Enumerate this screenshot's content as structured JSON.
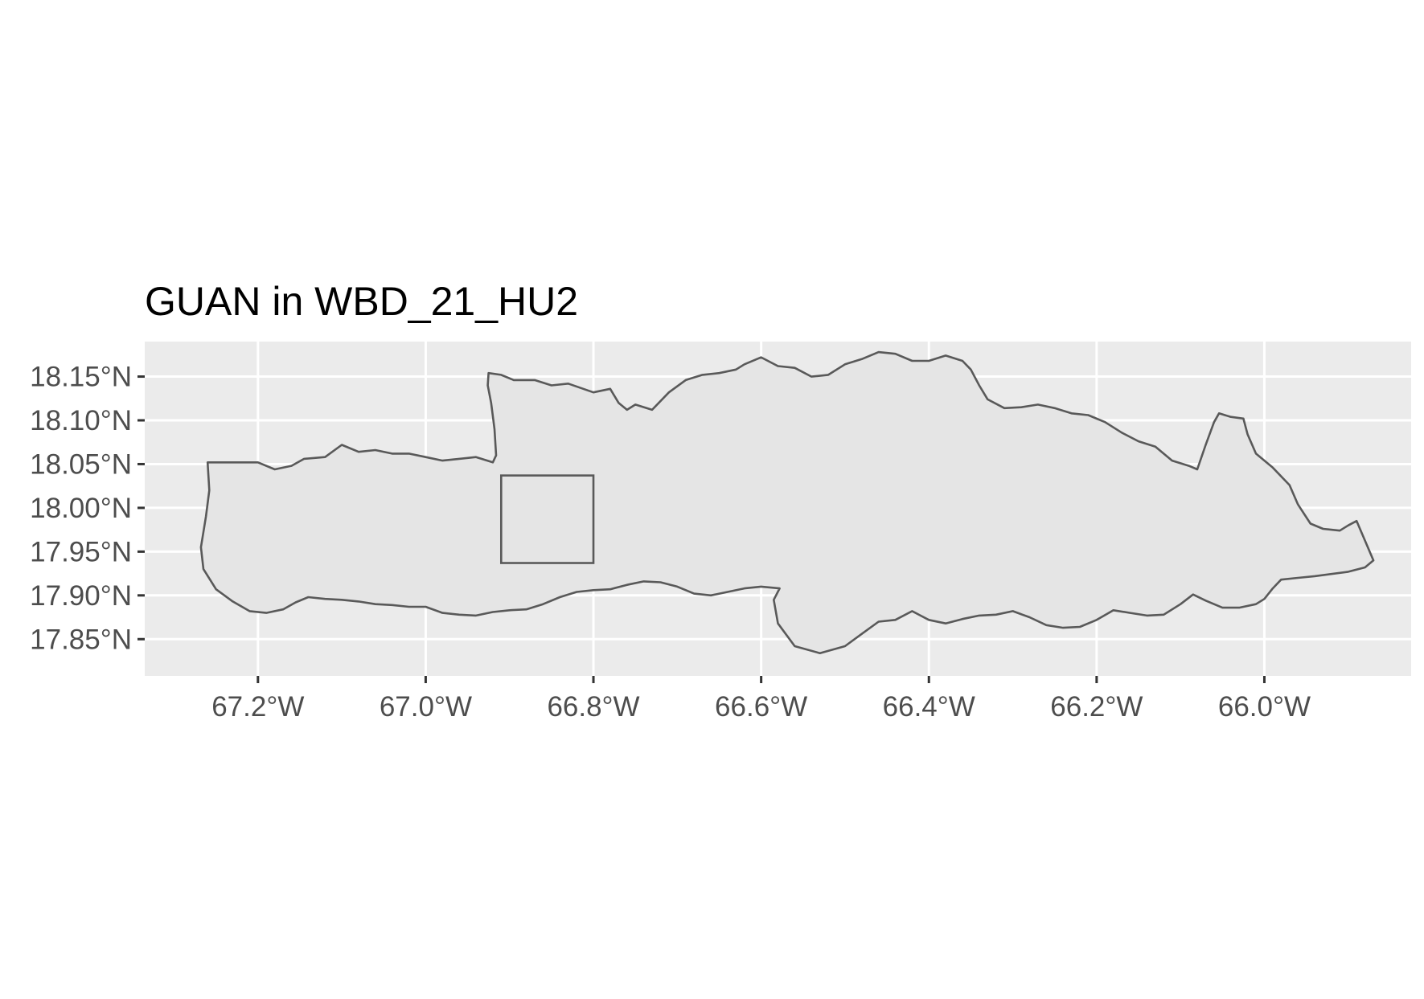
{
  "map": {
    "title": "GUAN in WBD_21_HU2",
    "lon_range": [
      -67.335,
      -65.825
    ],
    "lat_range": [
      17.808,
      18.19
    ],
    "x_ticks": [
      {
        "value": -67.2,
        "label": "67.2°W"
      },
      {
        "value": -67.0,
        "label": "67.0°W"
      },
      {
        "value": -66.8,
        "label": "66.8°W"
      },
      {
        "value": -66.6,
        "label": "66.6°W"
      },
      {
        "value": -66.4,
        "label": "66.4°W"
      },
      {
        "value": -66.2,
        "label": "66.2°W"
      },
      {
        "value": -66.0,
        "label": "66.0°W"
      }
    ],
    "y_ticks": [
      {
        "value": 18.15,
        "label": "18.15°N"
      },
      {
        "value": 18.1,
        "label": "18.10°N"
      },
      {
        "value": 18.05,
        "label": "18.05°N"
      },
      {
        "value": 18.0,
        "label": "18.00°N"
      },
      {
        "value": 17.95,
        "label": "17.95°N"
      },
      {
        "value": 17.9,
        "label": "17.90°N"
      },
      {
        "value": 17.85,
        "label": "17.85°N"
      }
    ],
    "colors": {
      "panel_background": "#ebebeb",
      "grid": "#ffffff",
      "region_fill": "#e5e5e5",
      "region_outline": "#595959"
    },
    "site_box": {
      "lon_min": -66.91,
      "lon_max": -66.8,
      "lat_min": 17.937,
      "lat_max": 18.037
    },
    "region_outline": [
      [
        -67.26,
        18.052
      ],
      [
        -67.2,
        18.052
      ],
      [
        -67.18,
        18.044
      ],
      [
        -67.16,
        18.048
      ],
      [
        -67.145,
        18.056
      ],
      [
        -67.12,
        18.058
      ],
      [
        -67.1,
        18.072
      ],
      [
        -67.08,
        18.064
      ],
      [
        -67.06,
        18.066
      ],
      [
        -67.04,
        18.062
      ],
      [
        -67.02,
        18.062
      ],
      [
        -67.0,
        18.058
      ],
      [
        -66.98,
        18.054
      ],
      [
        -66.96,
        18.056
      ],
      [
        -66.94,
        18.058
      ],
      [
        -66.92,
        18.052
      ],
      [
        -66.916,
        18.06
      ],
      [
        -66.918,
        18.09
      ],
      [
        -66.922,
        18.12
      ],
      [
        -66.926,
        18.14
      ],
      [
        -66.925,
        18.154
      ],
      [
        -66.91,
        18.152
      ],
      [
        -66.895,
        18.146
      ],
      [
        -66.87,
        18.146
      ],
      [
        -66.85,
        18.14
      ],
      [
        -66.83,
        18.142
      ],
      [
        -66.8,
        18.132
      ],
      [
        -66.78,
        18.136
      ],
      [
        -66.77,
        18.12
      ],
      [
        -66.76,
        18.112
      ],
      [
        -66.75,
        18.118
      ],
      [
        -66.73,
        18.112
      ],
      [
        -66.71,
        18.132
      ],
      [
        -66.69,
        18.146
      ],
      [
        -66.67,
        18.152
      ],
      [
        -66.65,
        18.154
      ],
      [
        -66.63,
        18.158
      ],
      [
        -66.62,
        18.164
      ],
      [
        -66.6,
        18.172
      ],
      [
        -66.58,
        18.162
      ],
      [
        -66.56,
        18.16
      ],
      [
        -66.54,
        18.15
      ],
      [
        -66.52,
        18.152
      ],
      [
        -66.5,
        18.164
      ],
      [
        -66.48,
        18.17
      ],
      [
        -66.46,
        18.178
      ],
      [
        -66.44,
        18.176
      ],
      [
        -66.42,
        18.168
      ],
      [
        -66.4,
        18.168
      ],
      [
        -66.38,
        18.174
      ],
      [
        -66.36,
        18.168
      ],
      [
        -66.35,
        18.158
      ],
      [
        -66.34,
        18.14
      ],
      [
        -66.33,
        18.124
      ],
      [
        -66.31,
        18.114
      ],
      [
        -66.29,
        18.115
      ],
      [
        -66.27,
        18.118
      ],
      [
        -66.25,
        18.114
      ],
      [
        -66.23,
        18.108
      ],
      [
        -66.21,
        18.106
      ],
      [
        -66.19,
        18.098
      ],
      [
        -66.17,
        18.086
      ],
      [
        -66.15,
        18.076
      ],
      [
        -66.13,
        18.07
      ],
      [
        -66.11,
        18.054
      ],
      [
        -66.09,
        18.048
      ],
      [
        -66.08,
        18.044
      ],
      [
        -66.07,
        18.072
      ],
      [
        -66.06,
        18.098
      ],
      [
        -66.054,
        18.108
      ],
      [
        -66.04,
        18.104
      ],
      [
        -66.025,
        18.102
      ],
      [
        -66.02,
        18.084
      ],
      [
        -66.01,
        18.062
      ],
      [
        -65.99,
        18.046
      ],
      [
        -65.97,
        18.026
      ],
      [
        -65.96,
        18.004
      ],
      [
        -65.945,
        17.982
      ],
      [
        -65.93,
        17.976
      ],
      [
        -65.91,
        17.974
      ],
      [
        -65.9,
        17.98
      ],
      [
        -65.89,
        17.985
      ],
      [
        -65.87,
        17.94
      ],
      [
        -65.88,
        17.932
      ],
      [
        -65.9,
        17.927
      ],
      [
        -65.94,
        17.922
      ],
      [
        -65.96,
        17.92
      ],
      [
        -65.98,
        17.918
      ],
      [
        -65.99,
        17.908
      ],
      [
        -66.0,
        17.896
      ],
      [
        -66.01,
        17.89
      ],
      [
        -66.03,
        17.886
      ],
      [
        -66.05,
        17.886
      ],
      [
        -66.07,
        17.894
      ],
      [
        -66.085,
        17.901
      ],
      [
        -66.1,
        17.89
      ],
      [
        -66.12,
        17.878
      ],
      [
        -66.14,
        17.877
      ],
      [
        -66.16,
        17.88
      ],
      [
        -66.18,
        17.883
      ],
      [
        -66.2,
        17.872
      ],
      [
        -66.22,
        17.864
      ],
      [
        -66.24,
        17.863
      ],
      [
        -66.26,
        17.866
      ],
      [
        -66.28,
        17.875
      ],
      [
        -66.3,
        17.882
      ],
      [
        -66.32,
        17.878
      ],
      [
        -66.34,
        17.877
      ],
      [
        -66.36,
        17.873
      ],
      [
        -66.38,
        17.868
      ],
      [
        -66.4,
        17.872
      ],
      [
        -66.42,
        17.882
      ],
      [
        -66.44,
        17.872
      ],
      [
        -66.46,
        17.87
      ],
      [
        -66.48,
        17.856
      ],
      [
        -66.5,
        17.842
      ],
      [
        -66.53,
        17.834
      ],
      [
        -66.56,
        17.842
      ],
      [
        -66.58,
        17.868
      ],
      [
        -66.585,
        17.895
      ],
      [
        -66.578,
        17.908
      ],
      [
        -66.6,
        17.91
      ],
      [
        -66.62,
        17.908
      ],
      [
        -66.64,
        17.904
      ],
      [
        -66.66,
        17.9
      ],
      [
        -66.68,
        17.902
      ],
      [
        -66.7,
        17.91
      ],
      [
        -66.72,
        17.915
      ],
      [
        -66.74,
        17.916
      ],
      [
        -66.76,
        17.912
      ],
      [
        -66.78,
        17.907
      ],
      [
        -66.8,
        17.906
      ],
      [
        -66.82,
        17.904
      ],
      [
        -66.84,
        17.898
      ],
      [
        -66.86,
        17.89
      ],
      [
        -66.88,
        17.884
      ],
      [
        -66.9,
        17.883
      ],
      [
        -66.92,
        17.881
      ],
      [
        -66.94,
        17.877
      ],
      [
        -66.96,
        17.878
      ],
      [
        -66.98,
        17.88
      ],
      [
        -67.0,
        17.887
      ],
      [
        -67.02,
        17.887
      ],
      [
        -67.04,
        17.889
      ],
      [
        -67.06,
        17.89
      ],
      [
        -67.08,
        17.893
      ],
      [
        -67.1,
        17.895
      ],
      [
        -67.12,
        17.896
      ],
      [
        -67.14,
        17.898
      ],
      [
        -67.155,
        17.892
      ],
      [
        -67.17,
        17.884
      ],
      [
        -67.19,
        17.88
      ],
      [
        -67.21,
        17.882
      ],
      [
        -67.23,
        17.893
      ],
      [
        -67.25,
        17.907
      ],
      [
        -67.265,
        17.93
      ],
      [
        -67.268,
        17.955
      ],
      [
        -67.262,
        17.99
      ],
      [
        -67.258,
        18.02
      ],
      [
        -67.26,
        18.052
      ]
    ]
  }
}
